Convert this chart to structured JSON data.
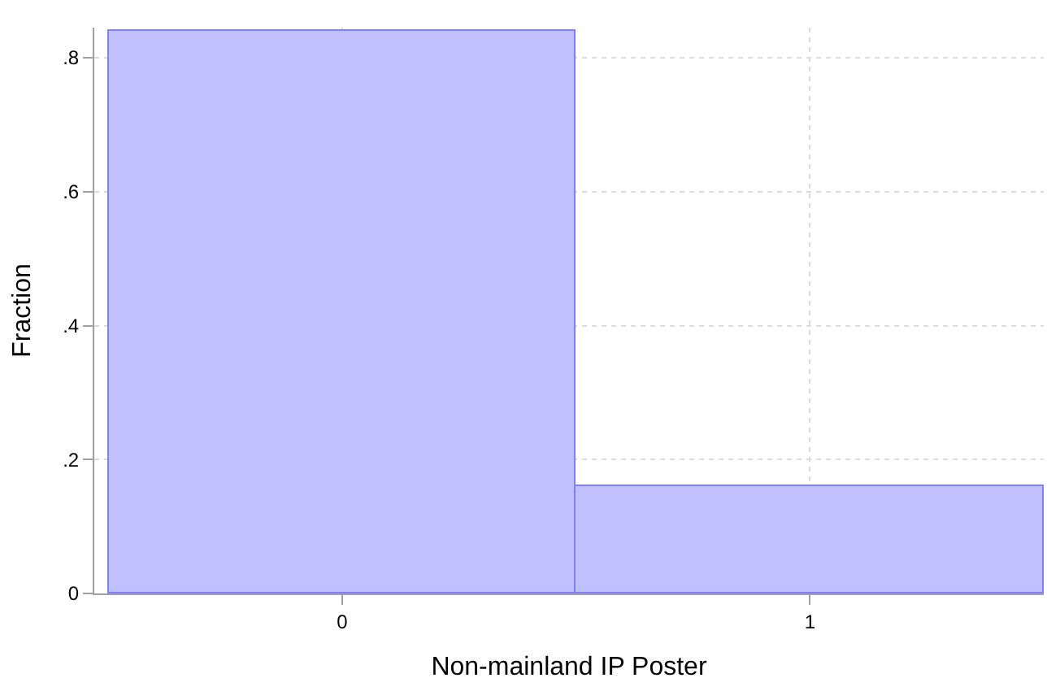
{
  "chart_data": {
    "type": "histogram",
    "xlabel": "Non-mainland IP Poster",
    "ylabel": "Fraction",
    "bins": [
      -0.5,
      0.5,
      1.5
    ],
    "values": [
      0.84,
      0.16
    ],
    "color": "#c0c0ff",
    "xlim": [
      -0.53,
      1.5
    ],
    "xticks": [
      0,
      1
    ],
    "ylim": [
      0,
      0.845
    ],
    "yticks": [
      0,
      {
        "value": 0.2,
        "label": ".2"
      },
      {
        "value": 0.4,
        "label": ".4"
      },
      {
        "value": 0.6,
        "label": ".6"
      },
      {
        "value": 0.8,
        "label": ".8"
      }
    ],
    "grid": true
  }
}
